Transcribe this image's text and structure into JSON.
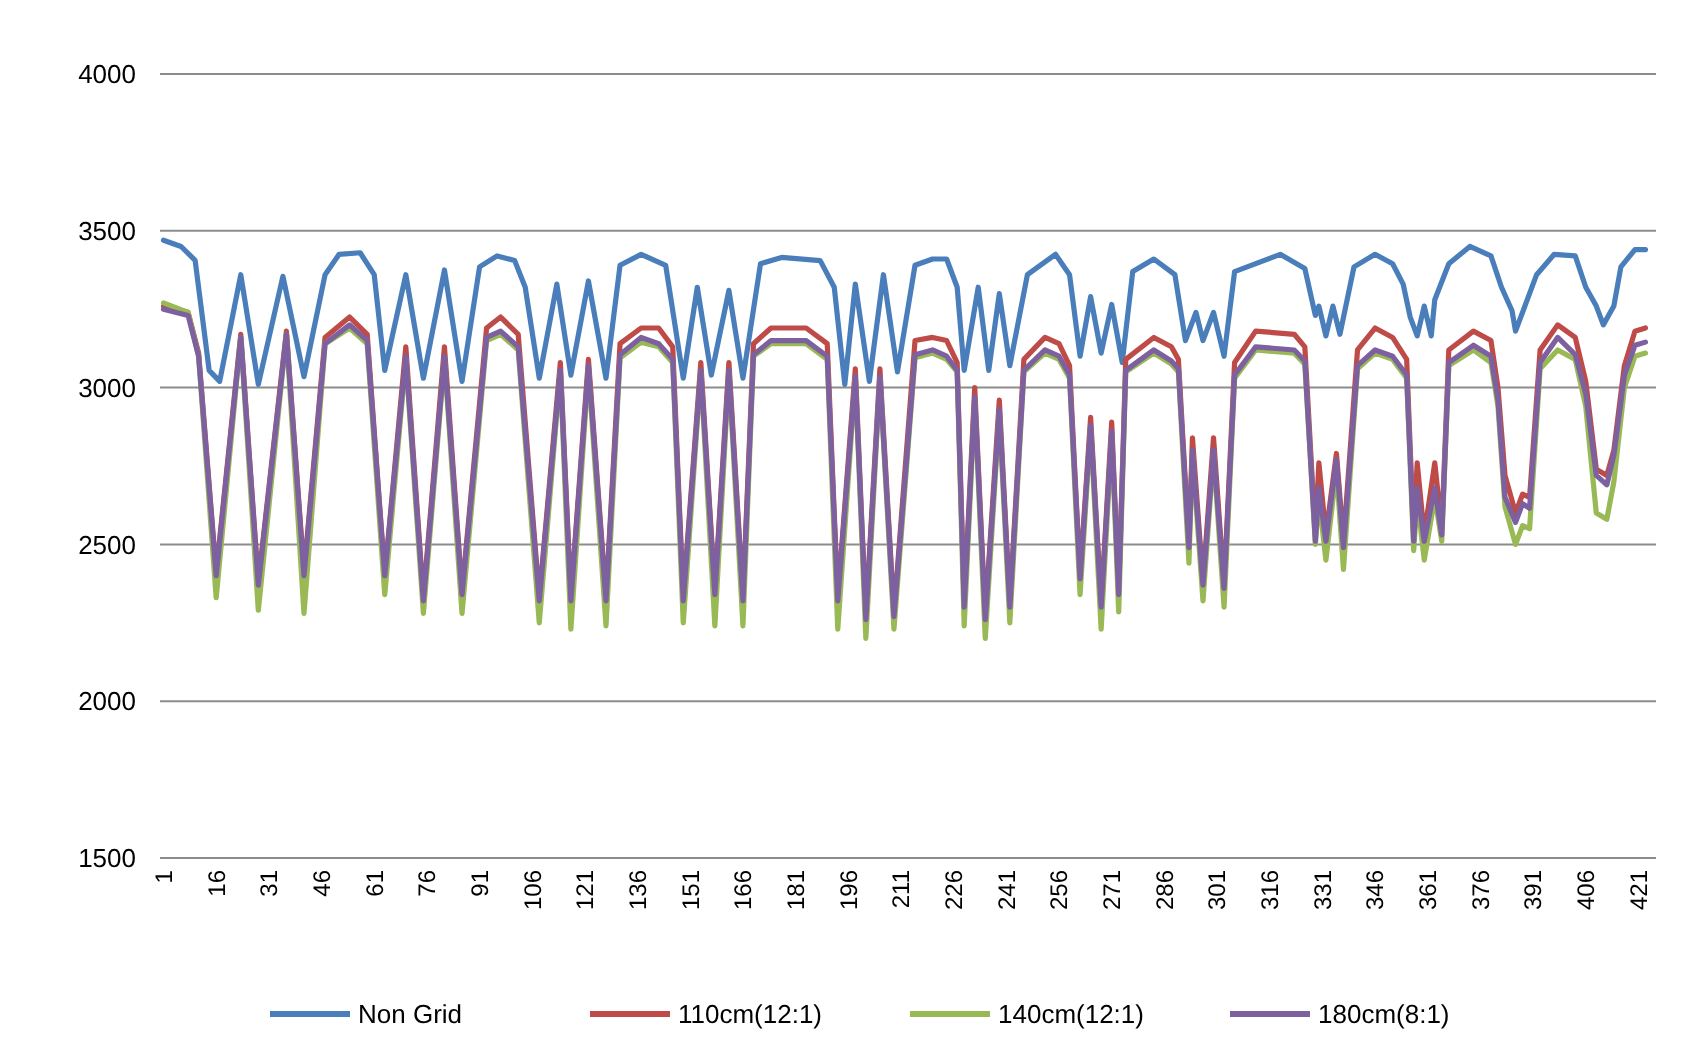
{
  "chart_data": {
    "type": "line",
    "x": [
      1,
      8,
      11,
      16,
      23,
      28,
      36,
      41,
      47,
      54,
      59,
      64,
      70,
      75,
      81,
      86,
      93,
      97,
      102,
      108,
      114,
      117,
      122,
      127,
      131,
      137,
      142,
      146,
      149,
      154,
      158,
      162,
      166,
      169,
      174,
      184,
      190,
      193,
      198,
      201,
      205,
      209,
      215,
      220,
      224,
      227,
      229,
      232,
      235,
      239,
      242,
      246,
      252,
      256,
      259,
      262,
      265,
      268,
      271,
      273,
      275,
      283,
      288,
      290,
      293,
      294,
      297,
      300,
      303,
      306,
      312,
      323,
      326,
      329,
      330,
      332,
      335,
      337,
      341,
      346,
      351,
      355,
      357,
      358,
      360,
      363,
      365,
      367,
      374,
      379,
      381,
      383,
      386,
      388,
      390,
      393,
      398,
      403,
      406,
      409,
      412,
      414,
      417,
      420,
      423
    ],
    "series": [
      {
        "name": "Non Grid",
        "color": "#4a7ebb",
        "x": [
          1,
          6,
          10,
          14,
          17,
          23,
          28,
          35,
          41,
          47,
          51,
          57,
          61,
          64,
          70,
          75,
          81,
          86,
          91,
          96,
          101,
          104,
          108,
          113,
          117,
          122,
          127,
          131,
          137,
          144,
          149,
          153,
          157,
          162,
          166,
          171,
          177,
          188,
          192,
          195,
          198,
          202,
          206,
          210,
          215,
          220,
          224,
          227,
          229,
          233,
          236,
          239,
          242,
          247,
          255,
          259,
          262,
          265,
          268,
          271,
          274,
          277,
          283,
          289,
          292,
          295,
          297,
          300,
          303,
          306,
          319,
          326,
          329,
          330,
          332,
          334,
          336,
          340,
          346,
          351,
          354,
          356,
          358,
          360,
          362,
          363,
          367,
          373,
          379,
          382,
          385,
          386,
          389,
          392,
          397,
          403,
          406,
          409,
          411,
          414,
          416,
          420,
          423
        ],
        "values": [
          3470,
          3450,
          3406,
          3055,
          3020,
          3360,
          3010,
          3355,
          3035,
          3360,
          3425,
          3430,
          3360,
          3055,
          3360,
          3030,
          3375,
          3020,
          3385,
          3420,
          3405,
          3320,
          3030,
          3330,
          3040,
          3340,
          3030,
          3390,
          3425,
          3390,
          3030,
          3320,
          3040,
          3310,
          3030,
          3395,
          3415,
          3405,
          3320,
          3010,
          3330,
          3020,
          3360,
          3050,
          3390,
          3410,
          3410,
          3320,
          3055,
          3320,
          3055,
          3300,
          3070,
          3360,
          3425,
          3360,
          3100,
          3290,
          3110,
          3265,
          3080,
          3370,
          3410,
          3360,
          3150,
          3240,
          3150,
          3240,
          3100,
          3370,
          3425,
          3380,
          3230,
          3260,
          3165,
          3260,
          3170,
          3385,
          3425,
          3395,
          3330,
          3225,
          3165,
          3260,
          3165,
          3280,
          3395,
          3450,
          3420,
          3320,
          3245,
          3180,
          3270,
          3360,
          3425,
          3420,
          3320,
          3260,
          3200,
          3260,
          3385,
          3440,
          3440
        ]
      },
      {
        "name": "110cm(12:1)",
        "color": "#be4b48",
        "values": [
          3260,
          3240,
          3110,
          2410,
          3170,
          2380,
          3180,
          2410,
          3160,
          3225,
          3170,
          2400,
          3130,
          2330,
          3130,
          2350,
          3190,
          3225,
          3170,
          2330,
          3080,
          2330,
          3090,
          2330,
          3140,
          3190,
          3190,
          3130,
          2330,
          3080,
          2350,
          3080,
          2330,
          3140,
          3190,
          3190,
          3140,
          2330,
          3060,
          2270,
          3060,
          2280,
          3150,
          3160,
          3150,
          3080,
          2310,
          3000,
          2270,
          2960,
          2310,
          3090,
          3160,
          3140,
          3070,
          2400,
          2905,
          2310,
          2890,
          2350,
          3090,
          3160,
          3130,
          3090,
          2500,
          2840,
          2380,
          2840,
          2370,
          3080,
          3180,
          3170,
          3130,
          2530,
          2760,
          2530,
          2790,
          2510,
          3120,
          3190,
          3160,
          3090,
          2530,
          2760,
          2530,
          2760,
          2550,
          3120,
          3180,
          3150,
          3000,
          2720,
          2600,
          2660,
          2650,
          3120,
          3200,
          3160,
          3020,
          2740,
          2720,
          2800,
          3070,
          3180,
          3190
        ]
      },
      {
        "name": "140cm(12:1)",
        "color": "#98b954",
        "values": [
          3270,
          3240,
          3100,
          2330,
          3160,
          2290,
          3170,
          2280,
          3140,
          3190,
          3140,
          2340,
          3090,
          2280,
          3090,
          2280,
          3150,
          3170,
          3120,
          2250,
          3050,
          2230,
          3060,
          2240,
          3095,
          3145,
          3130,
          3080,
          2250,
          3050,
          2240,
          3050,
          2240,
          3100,
          3140,
          3140,
          3090,
          2230,
          3030,
          2200,
          3030,
          2230,
          3095,
          3110,
          3090,
          3050,
          2240,
          2960,
          2200,
          2920,
          2250,
          3050,
          3110,
          3090,
          3030,
          2340,
          2870,
          2230,
          2850,
          2285,
          3050,
          3110,
          3075,
          3050,
          2440,
          2790,
          2320,
          2790,
          2300,
          3030,
          3120,
          3110,
          3075,
          2500,
          2650,
          2450,
          2740,
          2420,
          3060,
          3110,
          3090,
          3030,
          2480,
          2650,
          2450,
          2650,
          2510,
          3070,
          3120,
          3080,
          2940,
          2620,
          2500,
          2560,
          2550,
          3060,
          3120,
          3090,
          2940,
          2600,
          2580,
          2700,
          3000,
          3100,
          3110
        ]
      },
      {
        "name": "180cm(8:1)",
        "color": "#7d60a0",
        "values": [
          3250,
          3230,
          3100,
          2400,
          3160,
          2370,
          3170,
          2400,
          3140,
          3200,
          3150,
          2400,
          3100,
          2320,
          3100,
          2340,
          3160,
          3180,
          3130,
          2320,
          3055,
          2320,
          3070,
          2320,
          3105,
          3160,
          3140,
          3090,
          2320,
          3055,
          2340,
          3055,
          2320,
          3105,
          3150,
          3150,
          3100,
          2320,
          3035,
          2260,
          3035,
          2270,
          3105,
          3120,
          3100,
          3055,
          2300,
          2970,
          2260,
          2930,
          2300,
          3055,
          3120,
          3100,
          3040,
          2390,
          2880,
          2300,
          2860,
          2340,
          3055,
          3120,
          3085,
          3060,
          2490,
          2800,
          2370,
          2800,
          2360,
          3040,
          3130,
          3120,
          3085,
          2510,
          2680,
          2510,
          2770,
          2490,
          3070,
          3120,
          3100,
          3040,
          2510,
          2680,
          2510,
          2680,
          2530,
          3080,
          3135,
          3100,
          2960,
          2650,
          2570,
          2630,
          2615,
          3080,
          3160,
          3105,
          2980,
          2720,
          2690,
          2785,
          3040,
          3135,
          3145
        ]
      }
    ],
    "xlim": [
      0,
      426
    ],
    "xticks": [
      1,
      16,
      31,
      46,
      61,
      76,
      91,
      106,
      121,
      136,
      151,
      166,
      181,
      196,
      211,
      226,
      241,
      256,
      271,
      286,
      301,
      316,
      331,
      346,
      361,
      376,
      391,
      406,
      421
    ],
    "ylim": [
      1500,
      4000
    ],
    "yticks": [
      1500,
      2000,
      2500,
      3000,
      3500,
      4000
    ],
    "grid": "y",
    "legend": "bottom",
    "marker": "none",
    "line_style": "solid"
  }
}
